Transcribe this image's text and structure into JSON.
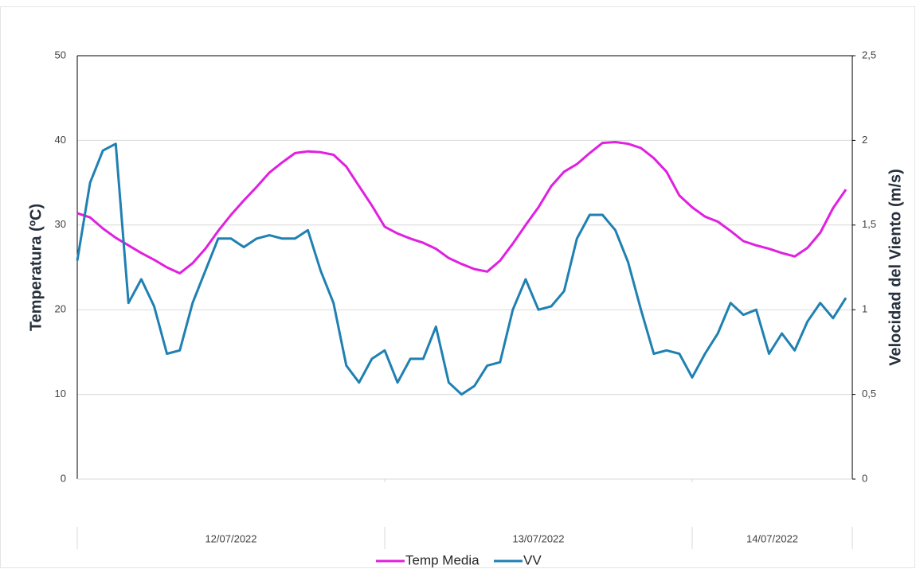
{
  "chart_data": {
    "type": "line",
    "y_title": "Temperatura (ºC)",
    "y2_title": "Velocidad del Viento (m/s)",
    "x": [
      "12/07/2022",
      "12/07/2022",
      "12/07/2022",
      "12/07/2022",
      "12/07/2022",
      "12/07/2022",
      "12/07/2022",
      "12/07/2022",
      "12/07/2022",
      "12/07/2022",
      "12/07/2022",
      "12/07/2022",
      "12/07/2022",
      "12/07/2022",
      "12/07/2022",
      "12/07/2022",
      "12/07/2022",
      "12/07/2022",
      "12/07/2022",
      "12/07/2022",
      "12/07/2022",
      "12/07/2022",
      "12/07/2022",
      "12/07/2022",
      "13/07/2022",
      "13/07/2022",
      "13/07/2022",
      "13/07/2022",
      "13/07/2022",
      "13/07/2022",
      "13/07/2022",
      "13/07/2022",
      "13/07/2022",
      "13/07/2022",
      "13/07/2022",
      "13/07/2022",
      "13/07/2022",
      "13/07/2022",
      "13/07/2022",
      "13/07/2022",
      "13/07/2022",
      "13/07/2022",
      "13/07/2022",
      "13/07/2022",
      "13/07/2022",
      "13/07/2022",
      "13/07/2022",
      "13/07/2022",
      "14/07/2022",
      "14/07/2022",
      "14/07/2022",
      "14/07/2022",
      "14/07/2022",
      "14/07/2022",
      "14/07/2022",
      "14/07/2022",
      "14/07/2022",
      "14/07/2022",
      "14/07/2022",
      "14/07/2022",
      "14/07/2022"
    ],
    "series": [
      {
        "name": "Temp Media",
        "color": "#e020e0",
        "axis": "y",
        "values": [
          31.4,
          30.9,
          29.6,
          28.5,
          27.6,
          26.7,
          25.9,
          25,
          24.3,
          25.5,
          27.2,
          29.3,
          31.2,
          32.9,
          34.5,
          36.2,
          37.4,
          38.5,
          38.7,
          38.6,
          38.3,
          36.9,
          34.6,
          32.3,
          29.8,
          29,
          28.4,
          27.9,
          27.2,
          26.1,
          25.4,
          24.8,
          24.5,
          25.8,
          27.8,
          30,
          32.1,
          34.6,
          36.3,
          37.2,
          38.5,
          39.7,
          39.8,
          39.6,
          39.1,
          37.9,
          36.3,
          33.5,
          32.1,
          31,
          30.4,
          29.3,
          28.1,
          27.6,
          27.2,
          26.7,
          26.3,
          27.3,
          29.1,
          32,
          34.2
        ]
      },
      {
        "name": "VV",
        "color": "#1f80b2",
        "axis": "y2",
        "values": [
          1.29,
          1.75,
          1.94,
          1.98,
          1.04,
          1.18,
          1.02,
          0.74,
          0.76,
          1.04,
          1.23,
          1.42,
          1.42,
          1.37,
          1.42,
          1.44,
          1.42,
          1.42,
          1.47,
          1.23,
          1.04,
          0.67,
          0.57,
          0.71,
          0.76,
          0.57,
          0.71,
          0.71,
          0.9,
          0.57,
          0.5,
          0.55,
          0.67,
          0.69,
          1.0,
          1.18,
          1.0,
          1.02,
          1.11,
          1.42,
          1.56,
          1.56,
          1.47,
          1.28,
          1.0,
          0.74,
          0.76,
          0.74,
          0.6,
          0.74,
          0.86,
          1.04,
          0.97,
          1.0,
          0.74,
          0.86,
          0.76,
          0.93,
          1.04,
          0.95,
          1.07
        ]
      }
    ],
    "ylim": [
      0,
      50
    ],
    "yticks": [
      0,
      10,
      20,
      30,
      40,
      50
    ],
    "y2lim": [
      0,
      2.5
    ],
    "y2ticks": [
      0,
      {
        "value": 0.5,
        "label": "0,5"
      },
      1,
      {
        "value": 1.5,
        "label": "1,5"
      },
      2,
      {
        "value": 2.5,
        "label": "2,5"
      }
    ],
    "grid": true,
    "legend": "bottom"
  }
}
